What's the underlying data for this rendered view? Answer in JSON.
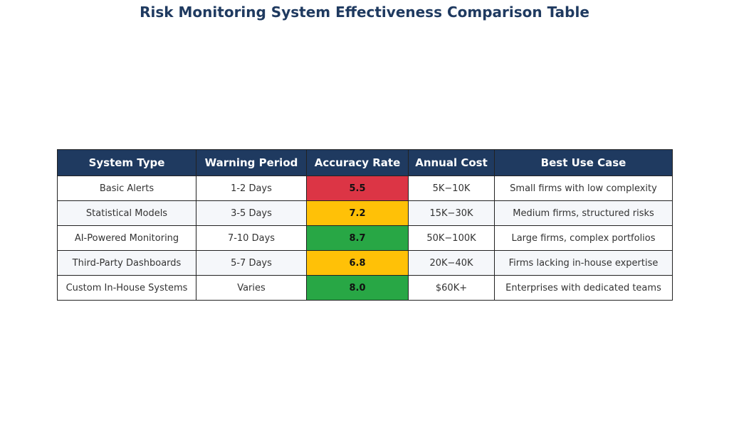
{
  "title": "Risk Monitoring System Effectiveness Comparison Table",
  "colors": {
    "header_bg": "#1f3a60",
    "header_text": "#ffffff",
    "title_text": "#1f3a60",
    "low": "#dc3545",
    "medium": "#ffc107",
    "high": "#28a745",
    "row_alt": "#f5f7fa"
  },
  "chart_data": {
    "type": "table",
    "title": "Risk Monitoring System Effectiveness Comparison Table",
    "columns": [
      "System Type",
      "Warning Period",
      "Accuracy Rate",
      "Annual Cost",
      "Best Use Case"
    ],
    "rows": [
      {
        "system": "Basic Alerts",
        "warning": "1-2 Days",
        "accuracy": 5.5,
        "accuracy_label": "5.5",
        "level": "low",
        "cost": "5K−10K",
        "use_case": "Small firms with low complexity"
      },
      {
        "system": "Statistical Models",
        "warning": "3-5 Days",
        "accuracy": 7.2,
        "accuracy_label": "7.2",
        "level": "medium",
        "cost": "15K−30K",
        "use_case": "Medium firms, structured risks"
      },
      {
        "system": "AI-Powered Monitoring",
        "warning": "7-10 Days",
        "accuracy": 8.7,
        "accuracy_label": "8.7",
        "level": "high",
        "cost": "50K−100K",
        "use_case": "Large firms, complex portfolios"
      },
      {
        "system": "Third-Party Dashboards",
        "warning": "5-7 Days",
        "accuracy": 6.8,
        "accuracy_label": "6.8",
        "level": "medium",
        "cost": "20K−40K",
        "use_case": "Firms lacking in-house expertise"
      },
      {
        "system": "Custom In-House Systems",
        "warning": "Varies",
        "accuracy": 8.0,
        "accuracy_label": "8.0",
        "level": "high",
        "cost": "$60K+",
        "use_case": "Enterprises with dedicated teams"
      }
    ]
  }
}
